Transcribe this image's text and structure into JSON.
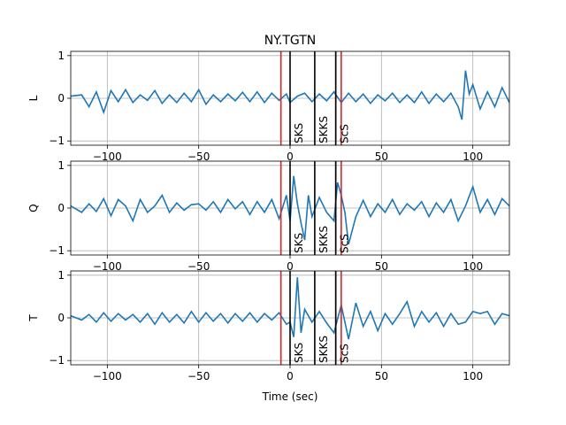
{
  "title": "NY.TGTN",
  "xlabel": "Time (sec)",
  "colors": {
    "trace": "#1f77b4",
    "red_marker": "#d62728",
    "phase_marker": "#000000",
    "grid": "#b0b0b0"
  },
  "chart_data": [
    {
      "type": "line",
      "ylabel": "L",
      "xlim": [
        -120,
        120
      ],
      "ylim": [
        -1.1,
        1.1
      ],
      "xticks": [
        -100,
        -50,
        0,
        50,
        100
      ],
      "yticks": [
        -1,
        0,
        1
      ],
      "xtick_labels": [
        "−100",
        "−50",
        "0",
        "50",
        "100"
      ],
      "ytick_labels": [
        "−1",
        "0",
        "1"
      ],
      "grid": true,
      "red_lines_x": [
        -5,
        25,
        28
      ],
      "phases": [
        {
          "name": "SKS",
          "x": 0
        },
        {
          "name": "SKKS",
          "x": 13.5
        },
        {
          "name": "ScS",
          "x": 25
        }
      ],
      "x": [
        -120,
        -114,
        -110,
        -106,
        -102,
        -98,
        -94,
        -90,
        -86,
        -82,
        -78,
        -74,
        -70,
        -66,
        -62,
        -58,
        -54,
        -50,
        -46,
        -42,
        -38,
        -34,
        -30,
        -26,
        -22,
        -18,
        -14,
        -10,
        -6,
        -2,
        0,
        4,
        8,
        12,
        16,
        20,
        24,
        28,
        32,
        36,
        40,
        44,
        48,
        52,
        56,
        60,
        64,
        68,
        72,
        76,
        80,
        84,
        88,
        92,
        94,
        96,
        98,
        100,
        104,
        108,
        112,
        116,
        120
      ],
      "y": [
        0.05,
        0.08,
        -0.2,
        0.15,
        -0.33,
        0.18,
        -0.08,
        0.2,
        -0.1,
        0.08,
        -0.05,
        0.18,
        -0.12,
        0.08,
        -0.1,
        0.12,
        -0.08,
        0.2,
        -0.14,
        0.08,
        -0.08,
        0.1,
        -0.06,
        0.14,
        -0.08,
        0.15,
        -0.1,
        0.12,
        -0.05,
        0.1,
        -0.1,
        0.05,
        0.12,
        -0.08,
        0.1,
        -0.06,
        0.15,
        -0.1,
        0.12,
        -0.08,
        0.1,
        -0.12,
        0.08,
        -0.06,
        0.12,
        -0.1,
        0.08,
        -0.1,
        0.15,
        -0.12,
        0.1,
        -0.08,
        0.12,
        -0.2,
        -0.5,
        0.65,
        0.1,
        0.32,
        -0.25,
        0.15,
        -0.2,
        0.25,
        -0.1
      ]
    },
    {
      "type": "line",
      "ylabel": "Q",
      "xlim": [
        -120,
        120
      ],
      "ylim": [
        -1.1,
        1.1
      ],
      "xticks": [
        -100,
        -50,
        0,
        50,
        100
      ],
      "yticks": [
        -1,
        0,
        1
      ],
      "xtick_labels": [
        "−100",
        "−50",
        "0",
        "50",
        "100"
      ],
      "ytick_labels": [
        "−1",
        "0",
        "1"
      ],
      "grid": true,
      "red_lines_x": [
        -5,
        25,
        28
      ],
      "phases": [
        {
          "name": "SKS",
          "x": 0
        },
        {
          "name": "SKKS",
          "x": 13.5
        },
        {
          "name": "ScS",
          "x": 25
        }
      ],
      "x": [
        -120,
        -114,
        -110,
        -106,
        -102,
        -98,
        -94,
        -90,
        -86,
        -82,
        -78,
        -74,
        -70,
        -66,
        -62,
        -58,
        -54,
        -50,
        -46,
        -42,
        -38,
        -34,
        -30,
        -26,
        -22,
        -18,
        -14,
        -10,
        -6,
        -2,
        0,
        2,
        4,
        6,
        8,
        10,
        12,
        16,
        20,
        24,
        26,
        28,
        30,
        32,
        36,
        40,
        44,
        48,
        52,
        56,
        60,
        64,
        68,
        72,
        76,
        80,
        84,
        88,
        92,
        96,
        100,
        104,
        108,
        112,
        116,
        120
      ],
      "y": [
        0.05,
        -0.1,
        0.1,
        -0.08,
        0.22,
        -0.18,
        0.2,
        0.05,
        -0.3,
        0.2,
        -0.1,
        0.05,
        0.3,
        -0.1,
        0.12,
        -0.05,
        0.08,
        0.1,
        -0.05,
        0.15,
        -0.1,
        0.2,
        -0.02,
        0.15,
        -0.15,
        0.15,
        -0.1,
        0.2,
        -0.25,
        0.3,
        -0.3,
        0.75,
        0.1,
        -0.35,
        -0.75,
        0.3,
        -0.2,
        0.25,
        -0.1,
        -0.3,
        0.6,
        0.3,
        -0.1,
        -0.85,
        -0.2,
        0.18,
        -0.2,
        0.1,
        -0.1,
        0.2,
        -0.15,
        0.1,
        -0.05,
        0.15,
        -0.2,
        0.12,
        -0.1,
        0.2,
        -0.3,
        0.05,
        0.5,
        -0.1,
        0.2,
        -0.15,
        0.22,
        0.05
      ]
    },
    {
      "type": "line",
      "ylabel": "T",
      "xlim": [
        -120,
        120
      ],
      "ylim": [
        -1.1,
        1.1
      ],
      "xticks": [
        -100,
        -50,
        0,
        50,
        100
      ],
      "yticks": [
        -1,
        0,
        1
      ],
      "xtick_labels": [
        "−100",
        "−50",
        "0",
        "50",
        "100"
      ],
      "ytick_labels": [
        "−1",
        "0",
        "1"
      ],
      "grid": true,
      "red_lines_x": [
        -5,
        25,
        28
      ],
      "phases": [
        {
          "name": "SKS",
          "x": 0
        },
        {
          "name": "SKKS",
          "x": 13.5
        },
        {
          "name": "ScS",
          "x": 25
        }
      ],
      "x": [
        -120,
        -114,
        -110,
        -106,
        -102,
        -98,
        -94,
        -90,
        -86,
        -82,
        -78,
        -74,
        -70,
        -66,
        -62,
        -58,
        -54,
        -50,
        -46,
        -42,
        -38,
        -34,
        -30,
        -26,
        -22,
        -18,
        -14,
        -10,
        -6,
        -2,
        0,
        2,
        4,
        6,
        8,
        12,
        16,
        20,
        24,
        28,
        32,
        36,
        40,
        44,
        48,
        52,
        56,
        60,
        64,
        68,
        72,
        76,
        80,
        84,
        88,
        92,
        96,
        100,
        104,
        108,
        112,
        116,
        120
      ],
      "y": [
        0.05,
        -0.05,
        0.08,
        -0.1,
        0.12,
        -0.08,
        0.1,
        -0.05,
        0.08,
        -0.1,
        0.1,
        -0.15,
        0.12,
        -0.1,
        0.08,
        -0.12,
        0.15,
        -0.1,
        0.12,
        -0.08,
        0.1,
        -0.12,
        0.1,
        -0.08,
        0.12,
        -0.1,
        0.1,
        -0.05,
        0.12,
        -0.15,
        -0.1,
        -0.45,
        0.95,
        -0.35,
        0.2,
        -0.1,
        0.15,
        -0.12,
        -0.35,
        0.3,
        -0.5,
        0.35,
        -0.2,
        0.15,
        -0.3,
        0.1,
        -0.15,
        0.1,
        0.38,
        -0.2,
        0.15,
        -0.1,
        0.12,
        -0.2,
        0.1,
        -0.15,
        -0.1,
        0.15,
        0.1,
        0.15,
        -0.15,
        0.1,
        0.05
      ]
    }
  ]
}
